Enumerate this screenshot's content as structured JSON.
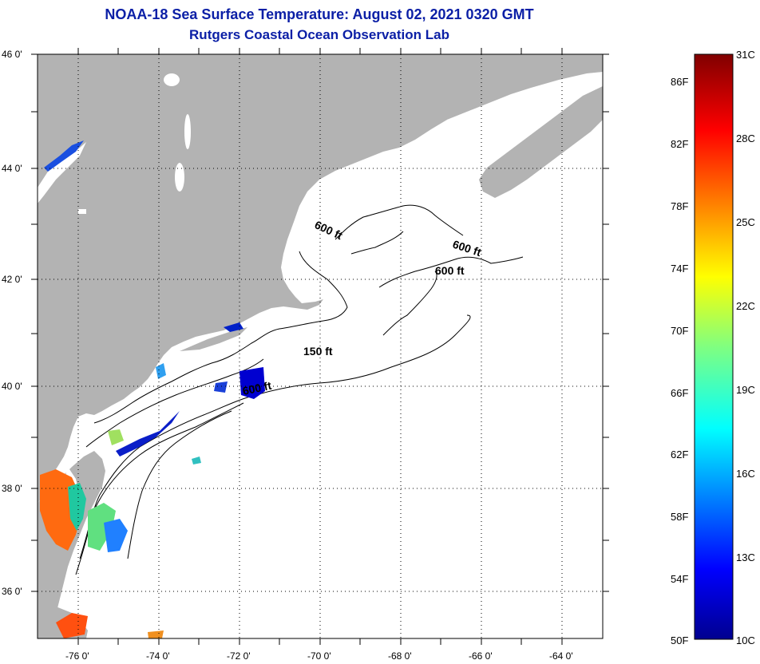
{
  "header": {
    "title": "NOAA-18 Sea Surface Temperature:  August 02, 2021 0320 GMT",
    "subtitle": "Rutgers Coastal Ocean Observation Lab"
  },
  "map": {
    "lat_range": [
      35,
      46.15
    ],
    "lon_range": [
      -77,
      -63
    ],
    "lat_ticks": [
      "46 0'",
      "44 0'",
      "42 0'",
      "40 0'",
      "38 0'",
      "36 0'"
    ],
    "lon_ticks": [
      "-76 0'",
      "-74 0'",
      "-72 0'",
      "-70 0'",
      "-68 0'",
      "-66 0'",
      "-64 0'"
    ],
    "grid": "dotted",
    "land_color": "#b3b3b3",
    "ocean_color": "#ffffff",
    "contour_labels": [
      "600 ft",
      "600 ft",
      "600 ft",
      "150 ft",
      "600 ft"
    ]
  },
  "colorbar": {
    "celsius_labels": [
      "31C",
      "28C",
      "25C",
      "22C",
      "19C",
      "16C",
      "13C",
      "10C"
    ],
    "fahrenheit_labels": [
      "86F",
      "82F",
      "78F",
      "74F",
      "70F",
      "66F",
      "62F",
      "58F",
      "54F",
      "50F"
    ],
    "range_c": [
      10,
      31
    ],
    "colormap": "jet"
  }
}
